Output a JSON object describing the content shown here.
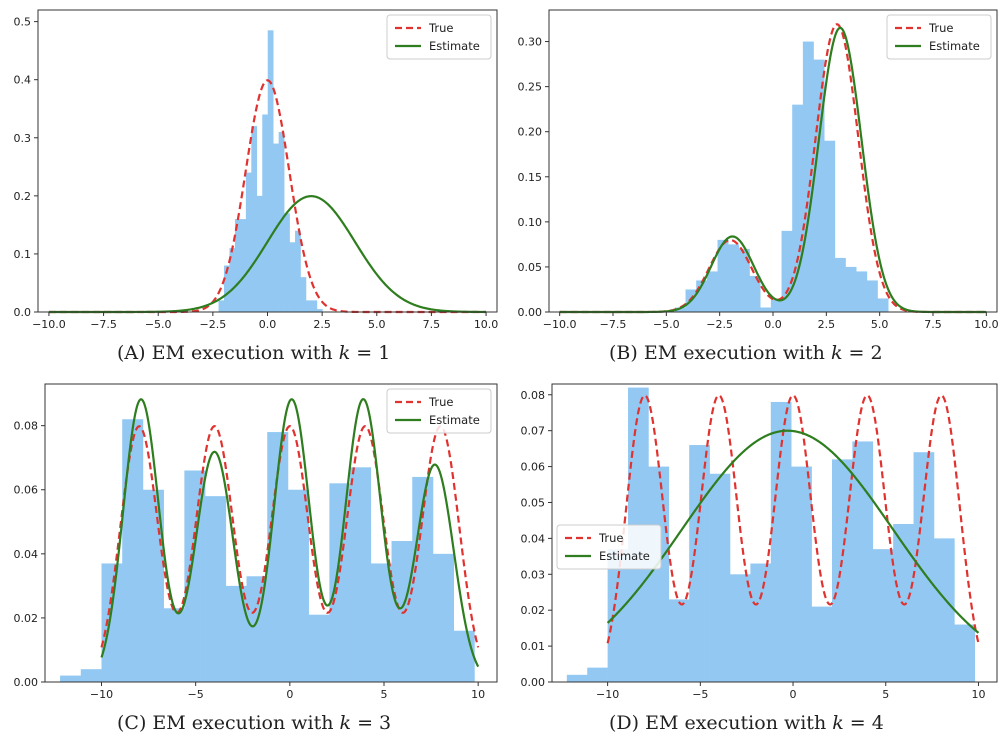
{
  "colors": {
    "hist": "#92c8f2",
    "true": "#e0322f",
    "estimate": "#2e7d1e",
    "axis": "#333333"
  },
  "captions": [
    {
      "prefix": "(A) EM execution with ",
      "var": "k",
      "suffix": " = 1"
    },
    {
      "prefix": "(B) EM execution with ",
      "var": "k",
      "suffix": " = 2"
    },
    {
      "prefix": "(C) EM execution with ",
      "var": "k",
      "suffix": " = 3"
    },
    {
      "prefix": "(D) EM execution with ",
      "var": "k",
      "suffix": " = 4"
    }
  ],
  "chart_data": [
    {
      "type": "histogram+line",
      "id": "A",
      "xlim": [
        -10.5,
        10.5
      ],
      "ylim": [
        0,
        0.52
      ],
      "xticks": [
        -10,
        -7.5,
        -5,
        -2.5,
        0,
        2.5,
        5,
        7.5,
        10
      ],
      "xtick_labels": [
        "−10.0",
        "−7.5",
        "−5.0",
        "−2.5",
        "0.0",
        "2.5",
        "5.0",
        "7.5",
        "10.0"
      ],
      "yticks": [
        0,
        0.1,
        0.2,
        0.3,
        0.4,
        0.5
      ],
      "ytick_labels": [
        "0.0",
        "0.1",
        "0.2",
        "0.3",
        "0.4",
        "0.5"
      ],
      "legend": {
        "position": "top-right",
        "entries": [
          "True",
          "Estimate"
        ]
      },
      "histogram": {
        "x0": -2.24,
        "bin_width": 0.25,
        "values": [
          0.02,
          0.08,
          0.11,
          0.16,
          0.16,
          0.24,
          0.32,
          0.2,
          0.34,
          0.485,
          0.29,
          0.31,
          0.17,
          0.12,
          0.14,
          0.06,
          0.02,
          0.02,
          0.005
        ]
      },
      "series": [
        {
          "name": "True",
          "style": "dashed",
          "components": [
            {
              "w": 1,
              "mu": 0,
              "sigma": 1
            }
          ]
        },
        {
          "name": "Estimate",
          "style": "solid",
          "components": [
            {
              "w": 1,
              "mu": 2,
              "sigma": 2
            }
          ]
        }
      ]
    },
    {
      "type": "histogram+line",
      "id": "B",
      "xlim": [
        -10.5,
        10.5
      ],
      "ylim": [
        0,
        0.335
      ],
      "xticks": [
        -10,
        -7.5,
        -5,
        -2.5,
        0,
        2.5,
        5,
        7.5,
        10
      ],
      "xtick_labels": [
        "−10.0",
        "−7.5",
        "−5.0",
        "−2.5",
        "0.0",
        "2.5",
        "5.0",
        "7.5",
        "10.0"
      ],
      "yticks": [
        0,
        0.05,
        0.1,
        0.15,
        0.2,
        0.25,
        0.3
      ],
      "ytick_labels": [
        "0.00",
        "0.05",
        "0.10",
        "0.15",
        "0.20",
        "0.25",
        "0.30"
      ],
      "legend": {
        "position": "top-right",
        "entries": [
          "True",
          "Estimate"
        ]
      },
      "histogram": {
        "x0": -4.6,
        "bin_width": 0.5,
        "values": [
          0.005,
          0.025,
          0.035,
          0.045,
          0.08,
          0.075,
          0.07,
          0.04,
          0.005,
          0.015,
          0.09,
          0.23,
          0.3,
          0.28,
          0.19,
          0.06,
          0.05,
          0.045,
          0.035,
          0.015
        ]
      },
      "series": [
        {
          "name": "True",
          "style": "dashed",
          "components": [
            {
              "w": 0.2,
              "mu": -2,
              "sigma": 1
            },
            {
              "w": 0.8,
              "mu": 3,
              "sigma": 1
            }
          ]
        },
        {
          "name": "Estimate",
          "style": "solid",
          "components": [
            {
              "w": 0.21,
              "mu": -1.9,
              "sigma": 1
            },
            {
              "w": 0.79,
              "mu": 3.15,
              "sigma": 1
            }
          ]
        }
      ]
    },
    {
      "type": "histogram+line",
      "id": "C",
      "xlim": [
        -13,
        11
      ],
      "ylim": [
        0,
        0.093
      ],
      "xticks": [
        -10,
        -5,
        0,
        5,
        10
      ],
      "xtick_labels": [
        "−10",
        "−5",
        "0",
        "5",
        "10"
      ],
      "yticks": [
        0,
        0.02,
        0.04,
        0.06,
        0.08
      ],
      "ytick_labels": [
        "0.00",
        "0.02",
        "0.04",
        "0.06",
        "0.08"
      ],
      "legend": {
        "position": "top-right",
        "entries": [
          "True",
          "Estimate"
        ]
      },
      "histogram": {
        "x0": -12.2,
        "bin_width": 1.1,
        "values": [
          0.002,
          0.004,
          0.037,
          0.082,
          0.06,
          0.023,
          0.066,
          0.058,
          0.03,
          0.033,
          0.078,
          0.06,
          0.021,
          0.062,
          0.067,
          0.037,
          0.044,
          0.064,
          0.04,
          0.016
        ]
      },
      "series": [
        {
          "name": "True",
          "style": "dashed",
          "range": [
            -10,
            10
          ],
          "components": [
            {
              "w": 0.2,
              "mu": -8,
              "sigma": 1
            },
            {
              "w": 0.2,
              "mu": -4,
              "sigma": 1
            },
            {
              "w": 0.2,
              "mu": 0,
              "sigma": 1
            },
            {
              "w": 0.2,
              "mu": 4,
              "sigma": 1
            },
            {
              "w": 0.2,
              "mu": 8,
              "sigma": 1
            }
          ]
        },
        {
          "name": "Estimate",
          "style": "solid",
          "range": [
            -10,
            10
          ],
          "components": [
            {
              "w": 0.21,
              "mu": -7.9,
              "sigma": 0.95
            },
            {
              "w": 0.18,
              "mu": -4,
              "sigma": 1
            },
            {
              "w": 0.21,
              "mu": 0.1,
              "sigma": 0.95
            },
            {
              "w": 0.21,
              "mu": 3.9,
              "sigma": 0.95
            },
            {
              "w": 0.17,
              "mu": 7.7,
              "sigma": 1
            }
          ]
        }
      ]
    },
    {
      "type": "histogram+line",
      "id": "D",
      "xlim": [
        -13,
        11
      ],
      "ylim": [
        0,
        0.083
      ],
      "xticks": [
        -10,
        -5,
        0,
        5,
        10
      ],
      "xtick_labels": [
        "−10",
        "−5",
        "0",
        "5",
        "10"
      ],
      "yticks": [
        0,
        0.01,
        0.02,
        0.03,
        0.04,
        0.05,
        0.06,
        0.07,
        0.08
      ],
      "ytick_labels": [
        "0.00",
        "0.01",
        "0.02",
        "0.03",
        "0.04",
        "0.05",
        "0.06",
        "0.07",
        "0.08"
      ],
      "legend": {
        "position": "center-left",
        "entries": [
          "True",
          "Estimate"
        ]
      },
      "histogram": {
        "x0": -12.2,
        "bin_width": 1.1,
        "values": [
          0.002,
          0.004,
          0.037,
          0.082,
          0.06,
          0.023,
          0.066,
          0.058,
          0.03,
          0.033,
          0.078,
          0.06,
          0.021,
          0.062,
          0.067,
          0.037,
          0.044,
          0.064,
          0.04,
          0.016
        ]
      },
      "series": [
        {
          "name": "True",
          "style": "dashed",
          "range": [
            -10,
            10
          ],
          "components": [
            {
              "w": 0.2,
              "mu": -8,
              "sigma": 1
            },
            {
              "w": 0.2,
              "mu": -4,
              "sigma": 1
            },
            {
              "w": 0.2,
              "mu": 0,
              "sigma": 1
            },
            {
              "w": 0.2,
              "mu": 4,
              "sigma": 1
            },
            {
              "w": 0.2,
              "mu": 8,
              "sigma": 1
            }
          ]
        },
        {
          "name": "Estimate",
          "style": "solid",
          "range": [
            -10,
            10
          ],
          "components": [
            {
              "w": 1,
              "mu": -0.3,
              "sigma": 5.7
            }
          ]
        }
      ]
    }
  ]
}
